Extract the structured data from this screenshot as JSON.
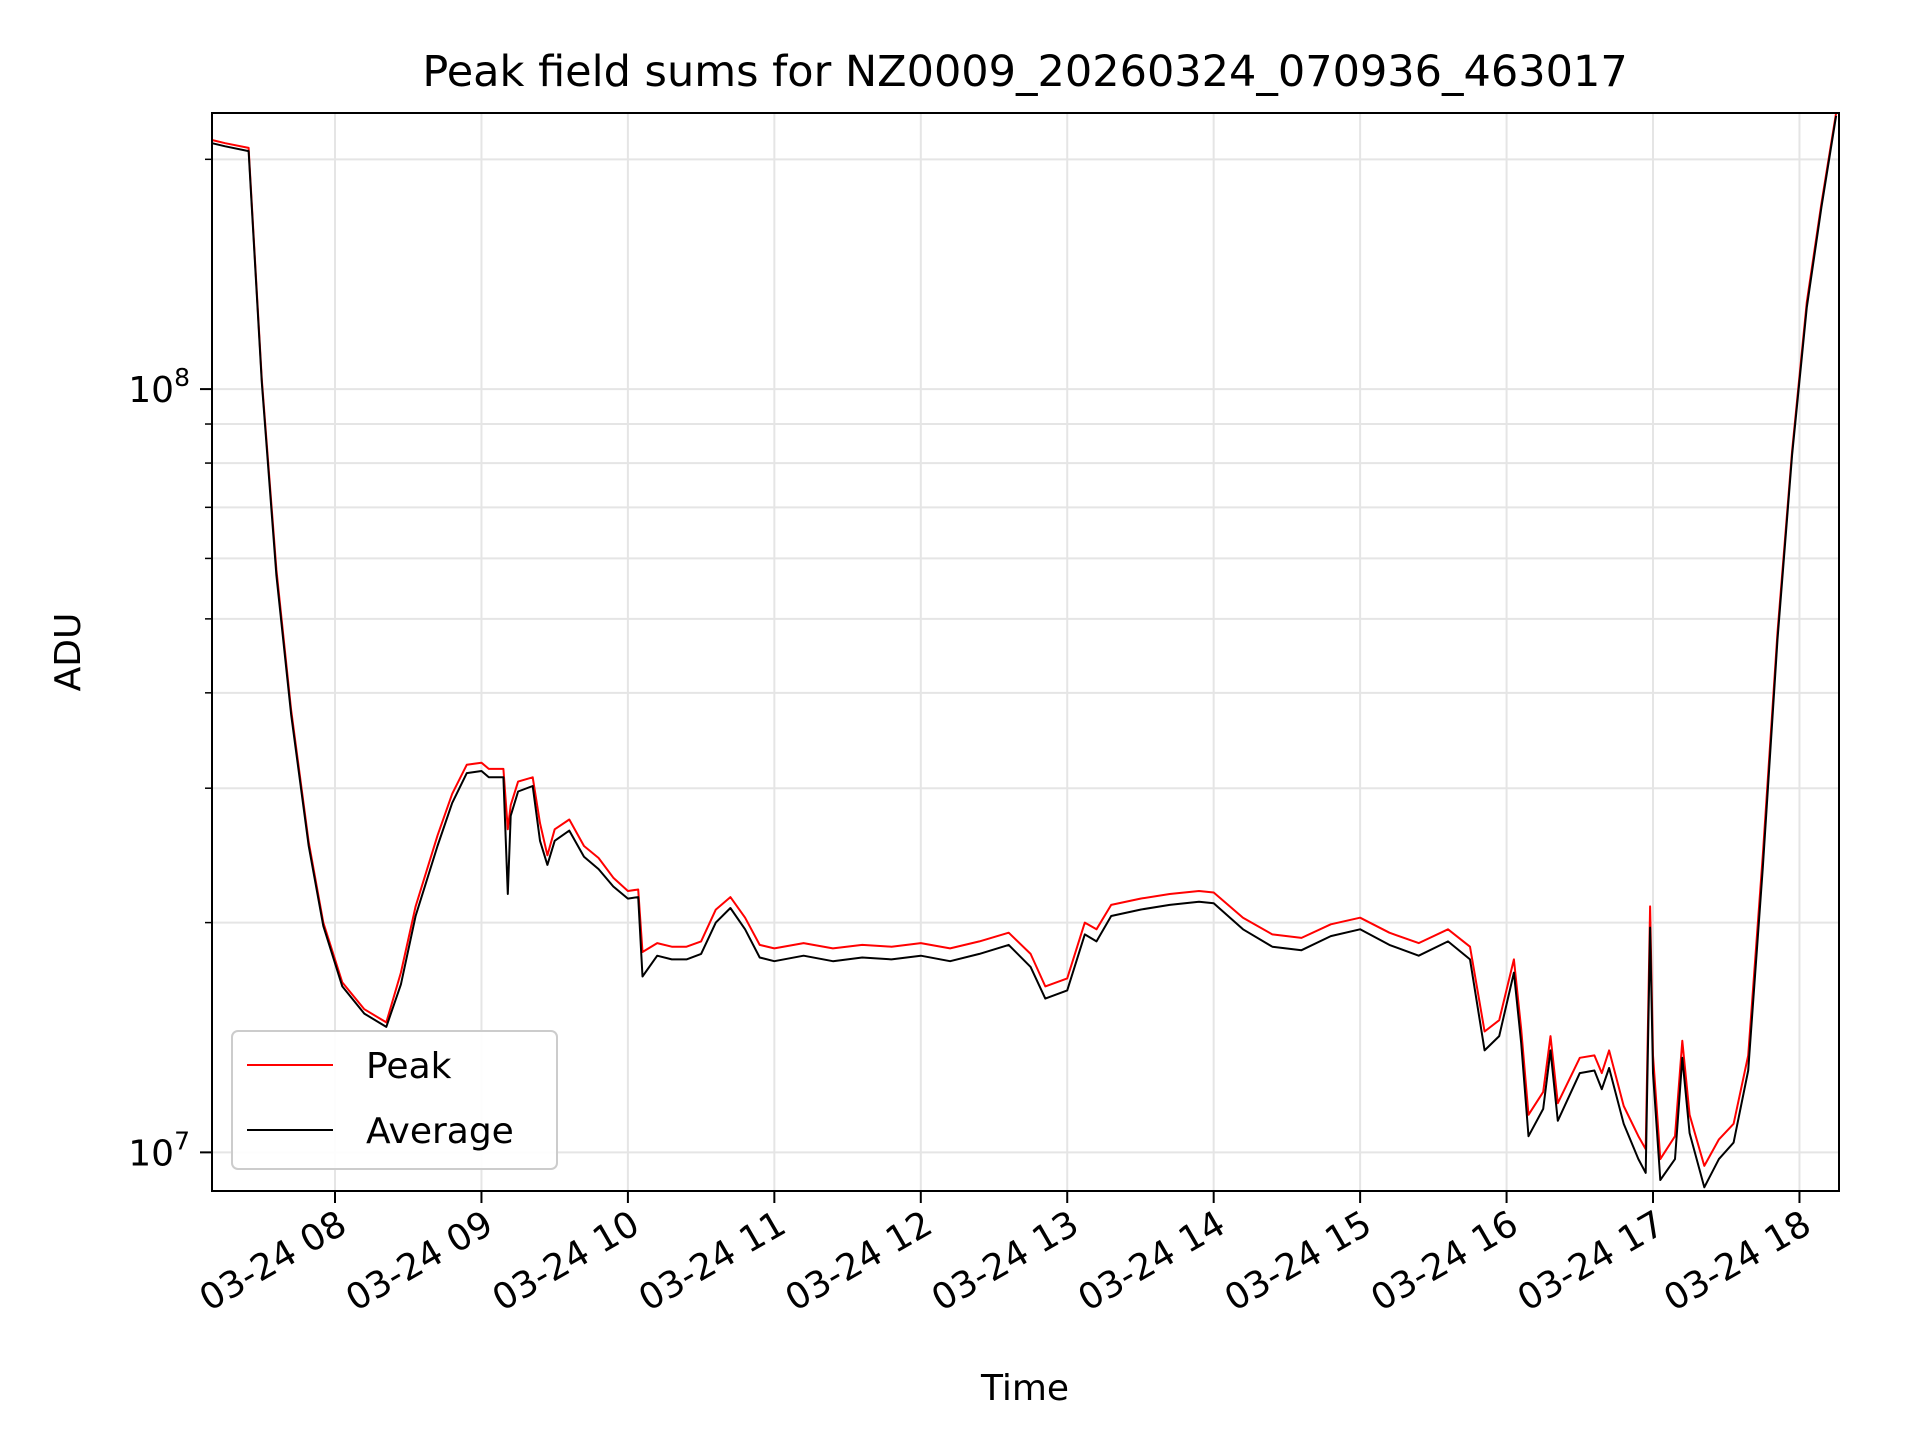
{
  "chart_data": {
    "type": "line",
    "title": "Peak field sums for NZ0009_20260324_070936_463017",
    "xlabel": "Time",
    "ylabel": "ADU",
    "yscale": "log",
    "ylim": [
      8900000,
      230000000
    ],
    "xlim_hours": [
      7.16,
      18.27
    ],
    "grid": true,
    "legend_position": "lower-left",
    "colors": {
      "peak": "#ff0000",
      "average": "#000000",
      "grid": "#e5e5e5",
      "axes": "#000000"
    },
    "x_ticks": [
      {
        "hour": 8,
        "label": "03-24 08"
      },
      {
        "hour": 9,
        "label": "03-24 09"
      },
      {
        "hour": 10,
        "label": "03-24 10"
      },
      {
        "hour": 11,
        "label": "03-24 11"
      },
      {
        "hour": 12,
        "label": "03-24 12"
      },
      {
        "hour": 13,
        "label": "03-24 13"
      },
      {
        "hour": 14,
        "label": "03-24 14"
      },
      {
        "hour": 15,
        "label": "03-24 15"
      },
      {
        "hour": 16,
        "label": "03-24 16"
      },
      {
        "hour": 17,
        "label": "03-24 17"
      },
      {
        "hour": 18,
        "label": "03-24 18"
      }
    ],
    "y_major_ticks": [
      {
        "value": 10000000,
        "base": "10",
        "exp": "7"
      },
      {
        "value": 100000000,
        "base": "10",
        "exp": "8"
      }
    ],
    "y_minor_ticks": [
      20000000,
      30000000,
      40000000,
      50000000,
      60000000,
      70000000,
      80000000,
      90000000,
      200000000
    ],
    "series": [
      {
        "name": "Peak",
        "key": "peak",
        "hours": [
          7.16,
          7.25,
          7.41,
          7.5,
          7.6,
          7.7,
          7.82,
          7.92,
          8.05,
          8.2,
          8.35,
          8.45,
          8.55,
          8.7,
          8.8,
          8.9,
          9.0,
          9.05,
          9.15,
          9.18,
          9.2,
          9.25,
          9.35,
          9.4,
          9.45,
          9.5,
          9.6,
          9.7,
          9.8,
          9.9,
          10.0,
          10.07,
          10.1,
          10.2,
          10.3,
          10.4,
          10.5,
          10.6,
          10.7,
          10.8,
          10.9,
          11.0,
          11.2,
          11.4,
          11.6,
          11.8,
          12.0,
          12.2,
          12.4,
          12.6,
          12.75,
          12.85,
          13.0,
          13.12,
          13.2,
          13.3,
          13.5,
          13.7,
          13.9,
          14.0,
          14.2,
          14.4,
          14.6,
          14.8,
          15.0,
          15.2,
          15.4,
          15.6,
          15.75,
          15.85,
          15.95,
          16.05,
          16.1,
          16.15,
          16.25,
          16.3,
          16.35,
          16.5,
          16.6,
          16.65,
          16.7,
          16.8,
          16.9,
          16.95,
          16.98,
          17.0,
          17.05,
          17.15,
          17.2,
          17.25,
          17.35,
          17.45,
          17.55,
          17.65,
          17.75,
          17.85,
          17.95,
          18.05,
          18.15,
          18.25
        ],
        "values": [
          212000000,
          210000000,
          207000000,
          103000000,
          58000000,
          38000000,
          25500000,
          20000000,
          16700000,
          15400000,
          14800000,
          17200000,
          21000000,
          26000000,
          29500000,
          32200000,
          32400000,
          31800000,
          31800000,
          26500000,
          28500000,
          30600000,
          31000000,
          27000000,
          24500000,
          26500000,
          27300000,
          25200000,
          24300000,
          22900000,
          22000000,
          22100000,
          18300000,
          18800000,
          18600000,
          18600000,
          18900000,
          20800000,
          21600000,
          20300000,
          18700000,
          18500000,
          18800000,
          18500000,
          18700000,
          18600000,
          18800000,
          18500000,
          18900000,
          19400000,
          18200000,
          16500000,
          16900000,
          20000000,
          19600000,
          21100000,
          21500000,
          21800000,
          22000000,
          21900000,
          20300000,
          19300000,
          19100000,
          19900000,
          20300000,
          19400000,
          18800000,
          19600000,
          18600000,
          14400000,
          14900000,
          17900000,
          14500000,
          11200000,
          12000000,
          14200000,
          11600000,
          13300000,
          13400000,
          12700000,
          13600000,
          11500000,
          10500000,
          10100000,
          21000000,
          13400000,
          9800000,
          10500000,
          14000000,
          11200000,
          9600000,
          10400000,
          10900000,
          13400000,
          24500000,
          48000000,
          83000000,
          130000000,
          175000000,
          230000000
        ]
      },
      {
        "name": "Average",
        "key": "average",
        "hours": [
          7.16,
          7.25,
          7.41,
          7.5,
          7.6,
          7.7,
          7.82,
          7.92,
          8.05,
          8.2,
          8.35,
          8.45,
          8.55,
          8.7,
          8.8,
          8.9,
          9.0,
          9.05,
          9.15,
          9.18,
          9.2,
          9.25,
          9.35,
          9.4,
          9.45,
          9.5,
          9.6,
          9.7,
          9.8,
          9.9,
          10.0,
          10.07,
          10.1,
          10.2,
          10.3,
          10.4,
          10.5,
          10.6,
          10.7,
          10.8,
          10.9,
          11.0,
          11.2,
          11.4,
          11.6,
          11.8,
          12.0,
          12.2,
          12.4,
          12.6,
          12.75,
          12.85,
          13.0,
          13.12,
          13.2,
          13.3,
          13.5,
          13.7,
          13.9,
          14.0,
          14.2,
          14.4,
          14.6,
          14.8,
          15.0,
          15.2,
          15.4,
          15.6,
          15.75,
          15.85,
          15.95,
          16.05,
          16.1,
          16.15,
          16.25,
          16.3,
          16.35,
          16.5,
          16.6,
          16.65,
          16.7,
          16.8,
          16.9,
          16.95,
          16.98,
          17.0,
          17.05,
          17.15,
          17.2,
          17.25,
          17.35,
          17.45,
          17.55,
          17.65,
          17.75,
          17.85,
          17.95,
          18.05,
          18.15,
          18.25
        ],
        "values": [
          210000000,
          208000000,
          205000000,
          102000000,
          57000000,
          37500000,
          25200000,
          19800000,
          16500000,
          15200000,
          14600000,
          16600000,
          20400000,
          25200000,
          28700000,
          31400000,
          31600000,
          31000000,
          31000000,
          21800000,
          27600000,
          29700000,
          30200000,
          25600000,
          23800000,
          25600000,
          26400000,
          24400000,
          23500000,
          22300000,
          21500000,
          21600000,
          17000000,
          18100000,
          17900000,
          17900000,
          18200000,
          20000000,
          20900000,
          19600000,
          18000000,
          17800000,
          18100000,
          17800000,
          18000000,
          17900000,
          18100000,
          17800000,
          18200000,
          18700000,
          17500000,
          15900000,
          16300000,
          19300000,
          18900000,
          20400000,
          20800000,
          21100000,
          21300000,
          21200000,
          19600000,
          18600000,
          18400000,
          19200000,
          19600000,
          18700000,
          18100000,
          18900000,
          17900000,
          13600000,
          14200000,
          17200000,
          13900000,
          10500000,
          11400000,
          13600000,
          11000000,
          12700000,
          12800000,
          12100000,
          12900000,
          10900000,
          9800000,
          9400000,
          19700000,
          12700000,
          9200000,
          9800000,
          13300000,
          10600000,
          9000000,
          9800000,
          10300000,
          12800000,
          23600000,
          47000000,
          82000000,
          128000000,
          173000000,
          228000000
        ]
      }
    ]
  }
}
